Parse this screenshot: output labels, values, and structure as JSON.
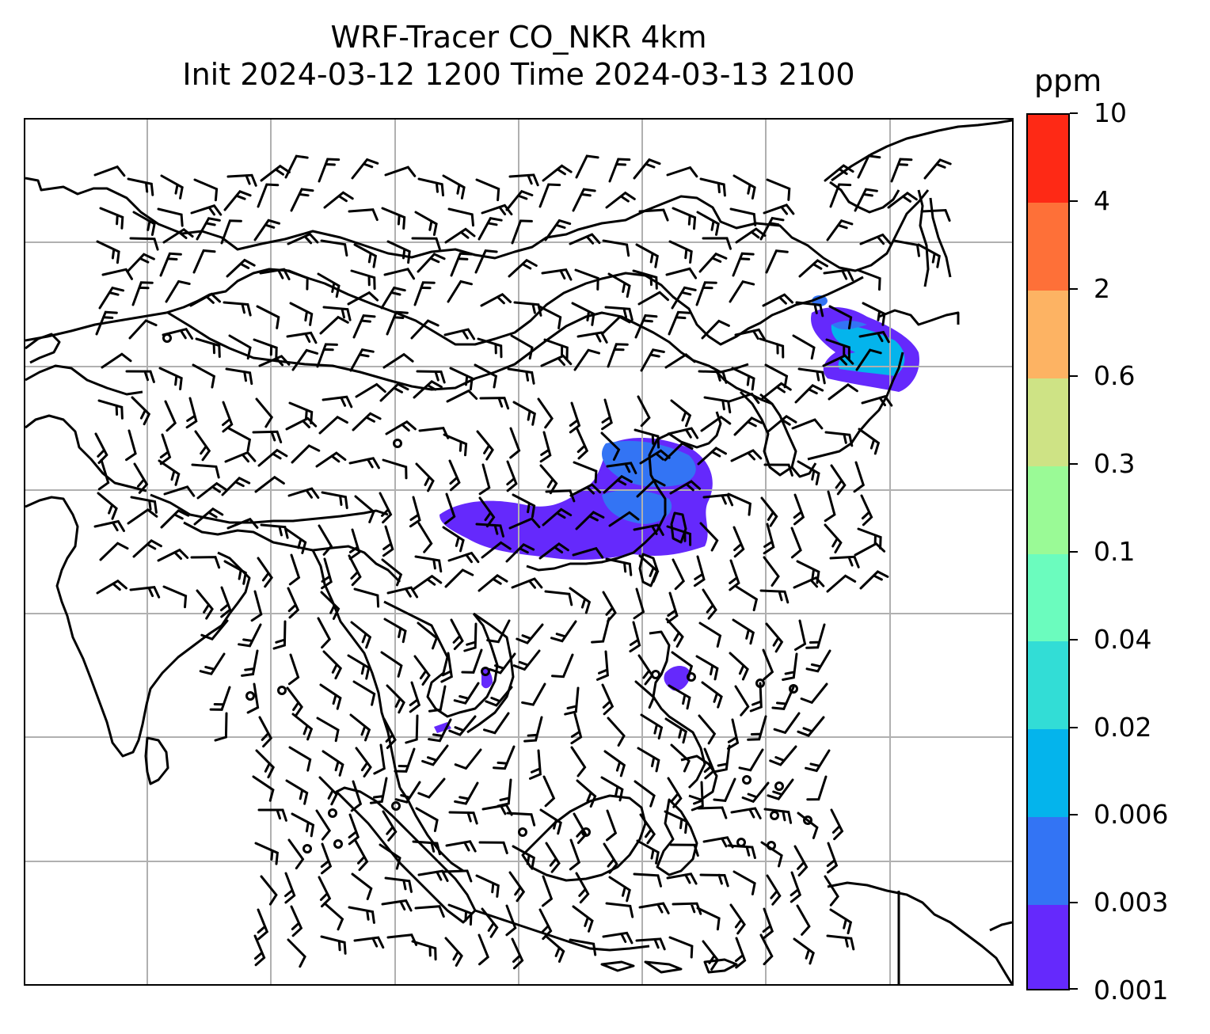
{
  "title": {
    "line1": "WRF-Tracer CO_NKR 4km",
    "line2": "Init 2024-03-12 1200 Time 2024-03-13 2100"
  },
  "colorbar": {
    "unit": "ppm",
    "levels": [
      "0.001",
      "0.003",
      "0.006",
      "0.02",
      "0.04",
      "0.1",
      "0.3",
      "0.6",
      "2",
      "4",
      "10"
    ],
    "colors": [
      "#6529fc",
      "#3374f4",
      "#04b4ec",
      "#32ddd6",
      "#6bfcbe",
      "#9afa96",
      "#cee385",
      "#fdb363",
      "#fe7038",
      "#fe2915"
    ]
  },
  "map": {
    "grid": true,
    "grid_color": "#b0b0b0",
    "coastline_color": "#000000",
    "wind_barbs": true
  }
}
